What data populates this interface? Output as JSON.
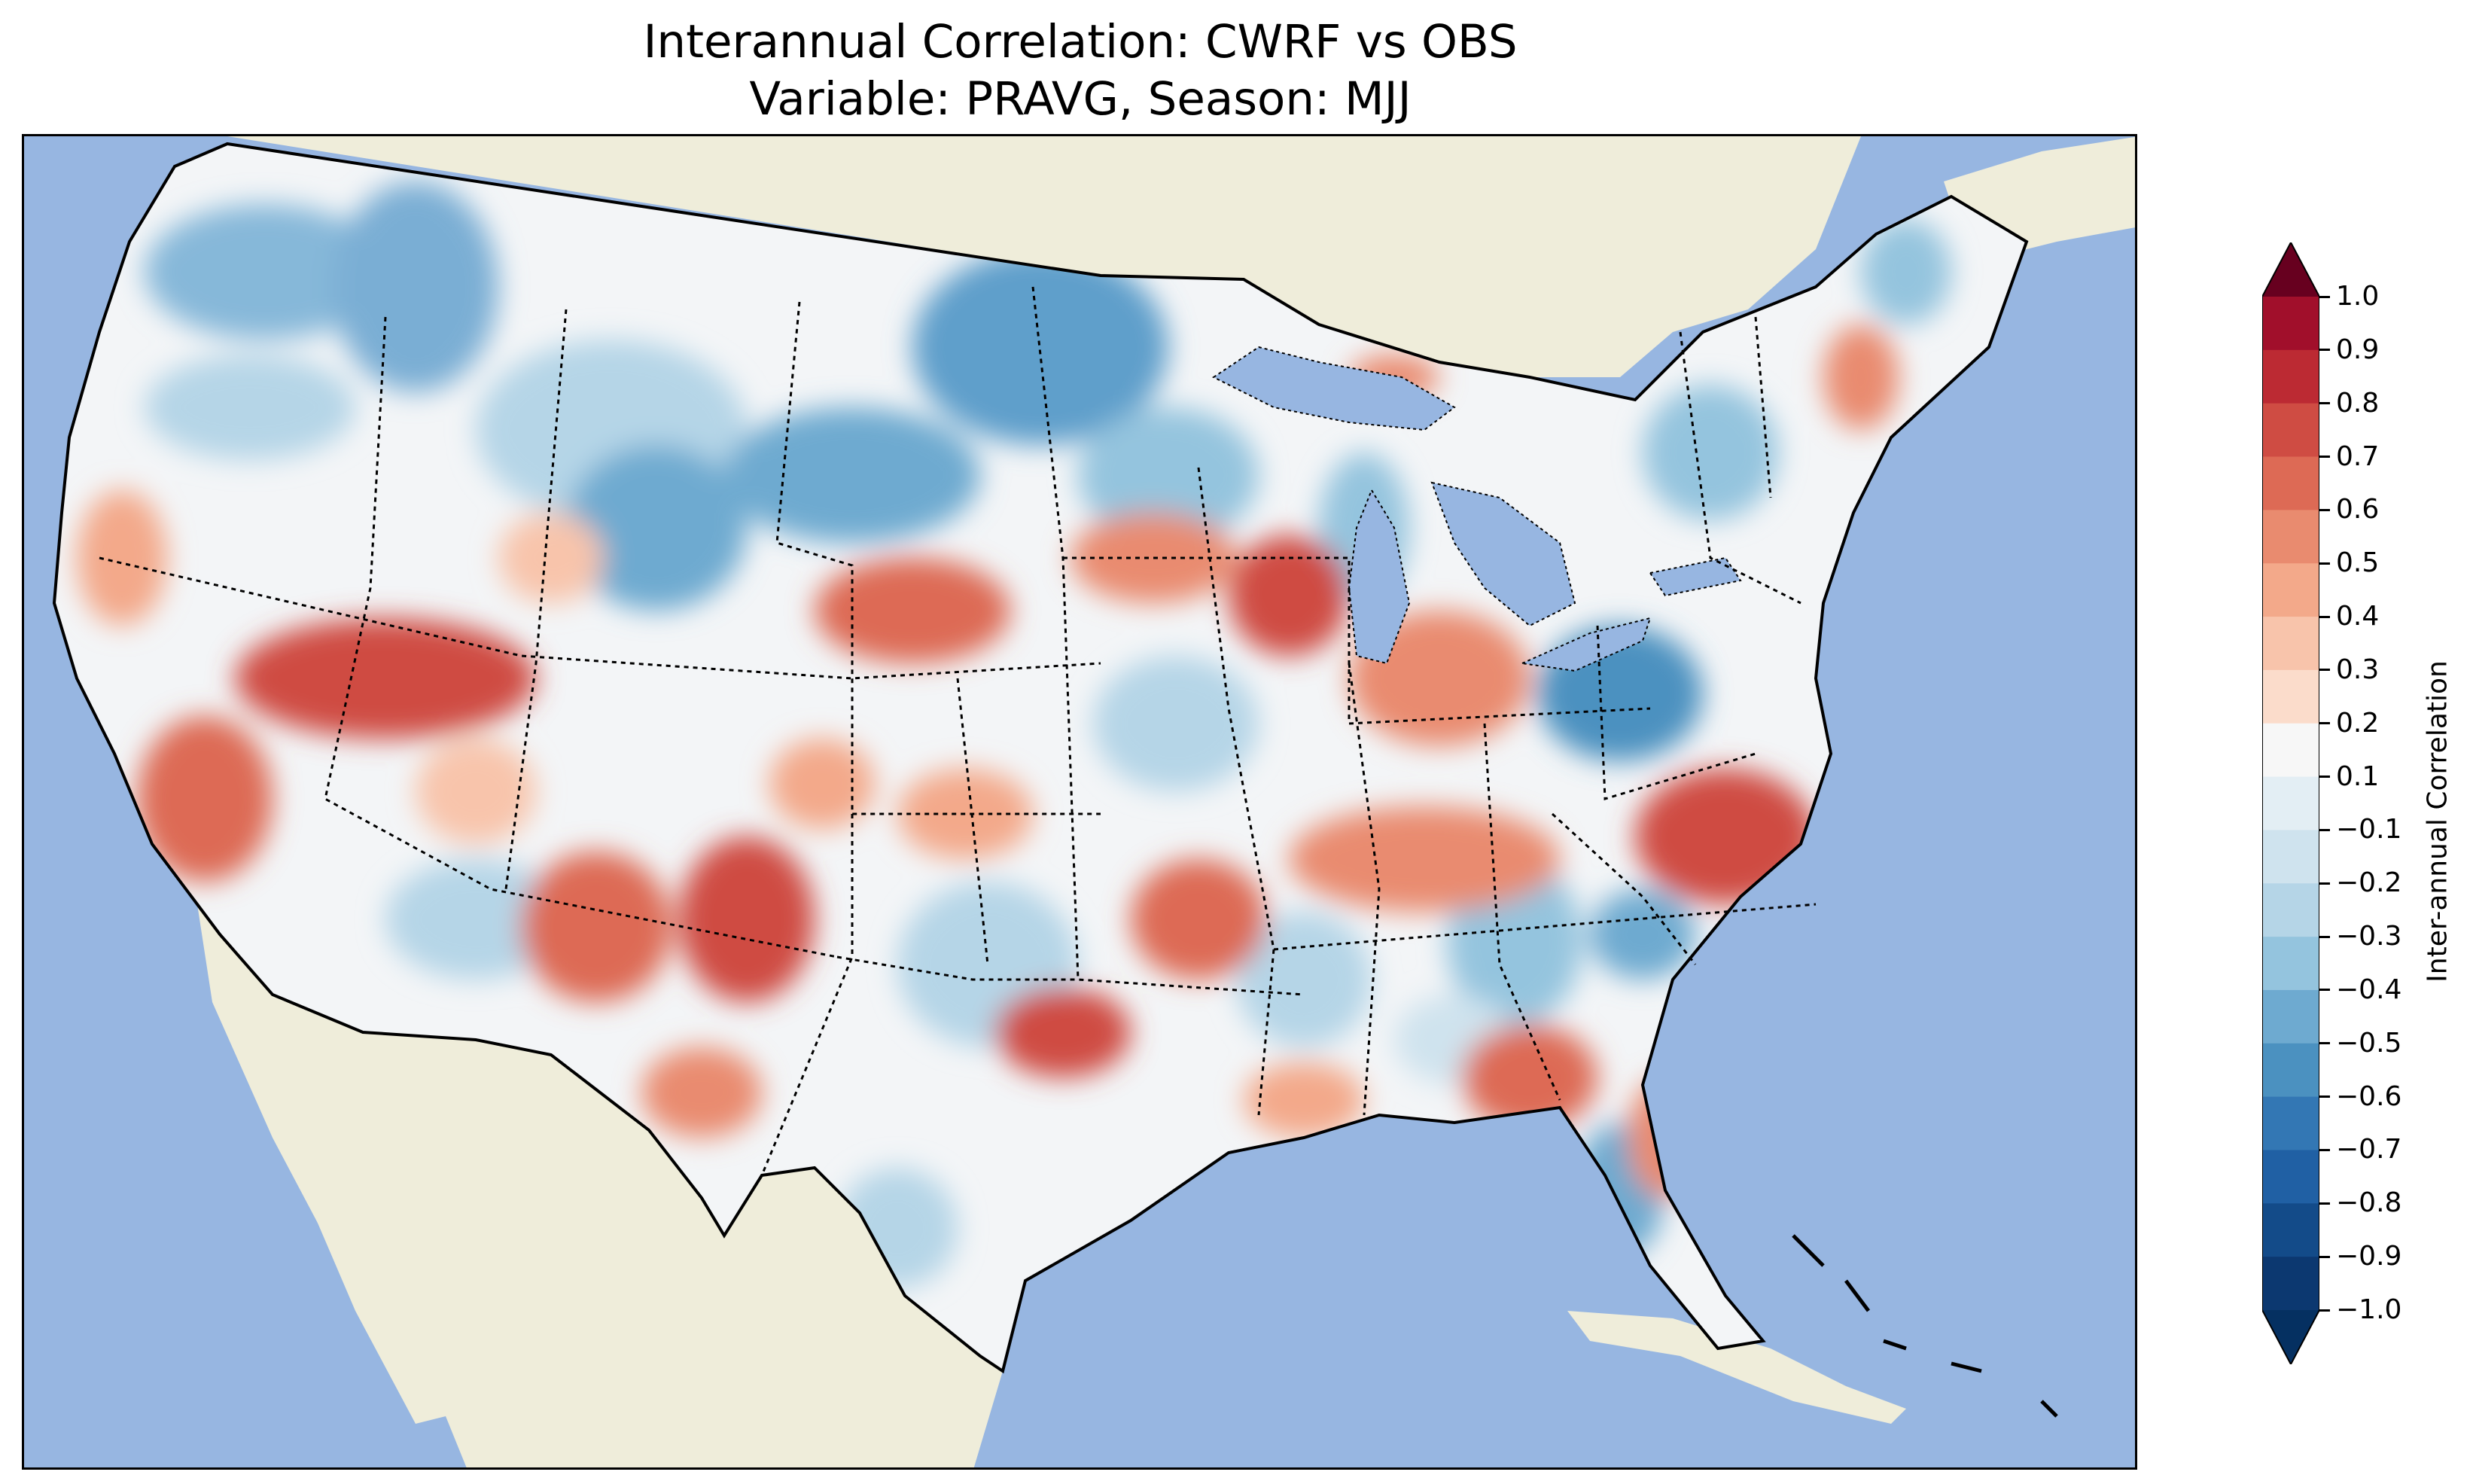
{
  "title": {
    "line1": "Interannual Correlation: CWRF vs OBS",
    "line2": "Variable: PRAVG, Season: MJJ"
  },
  "colors": {
    "ocean": "#97b6e1",
    "land": "#efedda",
    "lake": "#97b6e1",
    "border": "#000000"
  },
  "colorbar": {
    "label": "Inter-annual Correlation",
    "ticks": [
      "1.0",
      "0.9",
      "0.8",
      "0.7",
      "0.6",
      "0.5",
      "0.4",
      "0.3",
      "0.2",
      "0.1",
      "−0.1",
      "−0.2",
      "−0.3",
      "−0.4",
      "−0.5",
      "−0.6",
      "−0.7",
      "−0.8",
      "−0.9",
      "−1.0"
    ],
    "levels": [
      1.0,
      0.9,
      0.8,
      0.7,
      0.6,
      0.5,
      0.4,
      0.3,
      0.2,
      0.1,
      -0.1,
      -0.2,
      -0.3,
      -0.4,
      -0.5,
      -0.6,
      -0.7,
      -0.8,
      -0.9,
      -1.0
    ],
    "band_colors": [
      "#a10f2b",
      "#bc2a33",
      "#cf4c43",
      "#dd6a55",
      "#e98b6f",
      "#f3a98a",
      "#f8c4ab",
      "#fbdccb",
      "#f7f7f7",
      "#e3eef4",
      "#cfe3ee",
      "#b5d5e7",
      "#94c4de",
      "#6eaad0",
      "#4b91c0",
      "#3377b4",
      "#2060a4",
      "#134b89",
      "#0c3870"
    ],
    "extend_max_color": "#67001f",
    "extend_min_color": "#053061"
  },
  "map": {
    "description_layers": [
      "ocean",
      "land",
      "correlation-field",
      "state-borders",
      "coastline",
      "lakes"
    ]
  }
}
